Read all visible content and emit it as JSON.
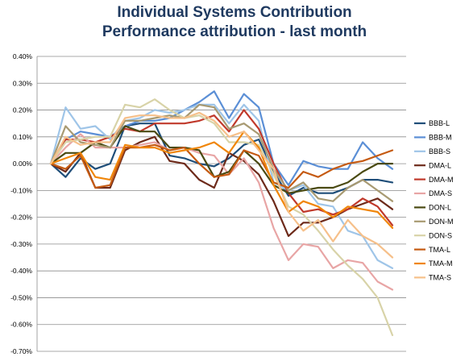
{
  "chart_data": {
    "type": "line",
    "title": "Individual Systems Contribution",
    "subtitle": "Performance attribution - last month",
    "xlabel": "",
    "ylabel": "",
    "ylim": [
      -0.7,
      0.4
    ],
    "y_ticks": [
      "0.40%",
      "0.30%",
      "0.20%",
      "0.10%",
      "0.00%",
      "-0.10%",
      "-0.20%",
      "-0.30%",
      "-0.40%",
      "-0.50%",
      "-0.60%",
      "-0.70%"
    ],
    "grid": true,
    "legend_position": "right",
    "x": [
      1,
      2,
      3,
      4,
      5,
      6,
      7,
      8,
      9,
      10,
      11,
      12,
      13,
      14,
      15,
      16,
      17,
      18,
      19,
      20,
      21,
      22,
      23,
      24
    ],
    "series": [
      {
        "name": "BBB-L",
        "color": "#1f4e79",
        "values": [
          0.0,
          -0.05,
          0.02,
          -0.02,
          0.0,
          0.14,
          0.15,
          0.15,
          0.03,
          0.02,
          0.0,
          -0.01,
          0.02,
          0.07,
          0.09,
          -0.03,
          -0.12,
          -0.09,
          -0.11,
          -0.11,
          -0.09,
          -0.06,
          -0.06,
          -0.07
        ]
      },
      {
        "name": "BBB-M",
        "color": "#5b8fd6",
        "values": [
          0.0,
          0.09,
          0.12,
          0.11,
          0.1,
          0.14,
          0.16,
          0.16,
          0.17,
          0.2,
          0.23,
          0.27,
          0.17,
          0.26,
          0.21,
          0.0,
          -0.08,
          0.01,
          -0.01,
          -0.02,
          -0.02,
          0.08,
          0.02,
          -0.02
        ]
      },
      {
        "name": "BBB-S",
        "color": "#9fc5e8",
        "values": [
          0.0,
          0.21,
          0.13,
          0.14,
          0.09,
          0.16,
          0.17,
          0.2,
          0.19,
          0.2,
          0.22,
          0.22,
          0.15,
          0.22,
          0.16,
          -0.07,
          -0.1,
          -0.08,
          -0.15,
          -0.16,
          -0.25,
          -0.27,
          -0.36,
          -0.39
        ]
      },
      {
        "name": "DMA-L",
        "color": "#6d2a1a",
        "values": [
          0.0,
          -0.03,
          0.04,
          -0.09,
          -0.09,
          0.05,
          0.08,
          0.1,
          0.01,
          0.0,
          -0.06,
          -0.09,
          0.04,
          0.01,
          -0.04,
          -0.14,
          -0.27,
          -0.22,
          -0.22,
          -0.2,
          -0.17,
          -0.15,
          -0.13,
          -0.17
        ]
      },
      {
        "name": "DMA-M",
        "color": "#c0392b",
        "values": [
          0.0,
          0.09,
          0.09,
          0.08,
          0.1,
          0.13,
          0.12,
          0.15,
          0.15,
          0.15,
          0.16,
          0.18,
          0.12,
          0.2,
          0.13,
          0.0,
          -0.11,
          -0.18,
          -0.17,
          -0.19,
          -0.17,
          -0.13,
          -0.16,
          -0.23
        ]
      },
      {
        "name": "DMA-S",
        "color": "#e8a5a5",
        "values": [
          0.0,
          0.06,
          0.11,
          0.06,
          0.06,
          0.06,
          0.07,
          0.08,
          0.05,
          0.06,
          0.04,
          0.03,
          -0.04,
          0.02,
          -0.07,
          -0.24,
          -0.36,
          -0.3,
          -0.31,
          -0.39,
          -0.36,
          -0.37,
          -0.44,
          -0.47
        ]
      },
      {
        "name": "DON-L",
        "color": "#4a4a12",
        "values": [
          0.0,
          0.04,
          0.04,
          0.08,
          0.06,
          0.14,
          0.12,
          0.12,
          0.06,
          0.06,
          0.05,
          -0.05,
          -0.03,
          0.05,
          0.0,
          -0.08,
          -0.11,
          -0.1,
          -0.09,
          -0.09,
          -0.07,
          -0.03,
          0.0,
          0.0
        ]
      },
      {
        "name": "DON-M",
        "color": "#a89a72",
        "values": [
          0.0,
          0.14,
          0.08,
          0.07,
          0.06,
          0.16,
          0.16,
          0.17,
          0.18,
          0.17,
          0.22,
          0.21,
          0.13,
          0.15,
          0.11,
          -0.02,
          -0.1,
          -0.07,
          -0.13,
          -0.14,
          -0.09,
          -0.06,
          -0.1,
          -0.14
        ]
      },
      {
        "name": "DON-S",
        "color": "#d8d3a8",
        "values": [
          0.0,
          0.08,
          0.09,
          0.1,
          0.1,
          0.22,
          0.21,
          0.24,
          0.2,
          0.17,
          0.18,
          0.15,
          0.08,
          0.08,
          0.07,
          -0.04,
          -0.16,
          -0.19,
          -0.25,
          -0.32,
          -0.38,
          -0.43,
          -0.5,
          -0.64
        ]
      },
      {
        "name": "TMA-L",
        "color": "#c55a11",
        "values": [
          0.0,
          -0.02,
          0.03,
          -0.09,
          -0.08,
          0.06,
          0.06,
          0.07,
          0.05,
          0.06,
          0.0,
          -0.05,
          -0.04,
          0.05,
          0.03,
          -0.07,
          -0.09,
          -0.03,
          -0.05,
          -0.02,
          0.0,
          0.01,
          0.03,
          0.05
        ]
      },
      {
        "name": "TMA-M",
        "color": "#f0860a",
        "values": [
          0.0,
          0.02,
          0.04,
          -0.05,
          -0.06,
          0.07,
          0.06,
          0.06,
          0.04,
          0.05,
          0.06,
          0.08,
          0.04,
          0.12,
          0.06,
          -0.08,
          -0.18,
          -0.14,
          -0.16,
          -0.2,
          -0.16,
          -0.17,
          -0.18,
          -0.24
        ]
      },
      {
        "name": "TMA-S",
        "color": "#f6c08a",
        "values": [
          0.0,
          0.1,
          0.07,
          0.08,
          0.08,
          0.17,
          0.18,
          0.18,
          0.17,
          0.17,
          0.19,
          0.16,
          0.1,
          0.12,
          0.05,
          -0.02,
          -0.18,
          -0.25,
          -0.21,
          -0.29,
          -0.21,
          -0.27,
          -0.3,
          -0.35
        ]
      }
    ]
  }
}
